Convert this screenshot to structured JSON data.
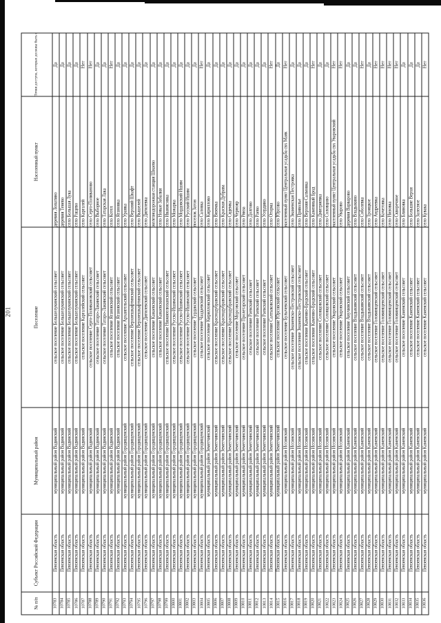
{
  "page": {
    "number": "201"
  },
  "table": {
    "headers": {
      "num": "№ п/п",
      "subject": "Субъект Российской Федерации",
      "district": "Муниципальный район",
      "settlement": "Поселение",
      "locality": "Населенный пункт",
      "access": "Точки доступа, которые должны быть оборудованы средствами связи, используемыми для оказания услуг подвижной радиотелефонной связи"
    },
    "rows": [
      [
        "10783",
        "Пензенская область",
        "муниципальный район Вадинский",
        "сельское поселение Большелукинский сельсовет",
        "деревня Лопатино",
        "Да"
      ],
      [
        "10784",
        "Пензенская область",
        "муниципальный район Вадинский",
        "сельское поселение Большелукинский сельсовет",
        "деревня Тенево",
        "Да"
      ],
      [
        "10785",
        "Пензенская область",
        "муниципальный район Вадинский",
        "сельское поселение Большелукинский сельсовет",
        "село Большая Лука",
        "Да"
      ],
      [
        "10786",
        "Пензенская область",
        "муниципальный район Вадинский",
        "сельское поселение Большелукинский сельсовет",
        "село Ращево",
        "Да"
      ],
      [
        "10787",
        "Пензенская область",
        "муниципальный район Вадинский",
        "сельское поселение Каргалейский сельсовет",
        "село Каргалей",
        "Нет"
      ],
      [
        "10788",
        "Пензенская область",
        "муниципальный район Вадинский",
        "сельское поселение Серго-Поливановский сельсовет",
        "село Серго-Поливаново",
        "Нет"
      ],
      [
        "10789",
        "Пензенская область",
        "муниципальный район Вадинский",
        "сельское поселение Татаро-Лакинский сельсовет",
        "село Выборное",
        "Да"
      ],
      [
        "10790",
        "Пензенская область",
        "муниципальный район Вадинский",
        "сельское поселение Татаро-Лакинский сельсовет",
        "село Татарская Лака",
        "Да"
      ],
      [
        "10791",
        "Пензенская область",
        "муниципальный район Вадинский",
        "сельское поселение Ягановский сельсовет",
        "село Котел",
        "Нет"
      ],
      [
        "10792",
        "Пензенская область",
        "муниципальный район Вадинский",
        "сельское поселение Ягановский сельсовет",
        "село Ягановка",
        "Да"
      ],
      [
        "10793",
        "Пензенская область",
        "муниципальный район Городищенский",
        "сельское поселение Архангельский сельсовет",
        "село Уранка",
        "Да"
      ],
      [
        "10794",
        "Пензенская область",
        "муниципальный район Городищенский",
        "сельское поселение Верхнешкафтинский сельсовет",
        "село Верхний Шкафт",
        "Да"
      ],
      [
        "10795",
        "Пензенская область",
        "муниципальный район Городищенский",
        "сельское поселение Верхнешкафтинский сельсовет",
        "село Вышелей",
        "Да"
      ],
      [
        "10796",
        "Пензенская область",
        "муниципальный район Городищенский",
        "сельское поселение Дигилевский сельсовет",
        "село Дигилевка",
        "Да"
      ],
      [
        "10797",
        "Пензенская область",
        "муниципальный район Городищенский",
        "сельское поселение Канаевский сельсовет",
        "железнодорожная станция Шнаево",
        "Да"
      ],
      [
        "10798",
        "Пензенская область",
        "муниципальный район Городищенский",
        "сельское поселение Канаевский сельсовет",
        "село Новые Забалки",
        "Да"
      ],
      [
        "10799",
        "Пензенская область",
        "муниципальный район Городищенский",
        "сельское поселение Нижнеелюзанский сельсовет",
        "село Иванисовка",
        "Да"
      ],
      [
        "10800",
        "Пензенская область",
        "муниципальный район Городищенский",
        "сельское поселение Русско-Ишимский сельсовет",
        "село Можарка",
        "Да"
      ],
      [
        "10801",
        "Пензенская область",
        "муниципальный район Городищенский",
        "сельское поселение Русско-Ишимский сельсовет",
        "село Мордовский Ишим",
        "Да"
      ],
      [
        "10802",
        "Пензенская область",
        "муниципальный район Городищенский",
        "сельское поселение Русско-Ишимский сельсовет",
        "село Русский Ишим",
        "Да"
      ],
      [
        "10803",
        "Пензенская область",
        "муниципальный район Городищенский",
        "сельское поселение Турдакский сельсовет",
        "поселок Затон",
        "Да"
      ],
      [
        "10804",
        "Пензенская область",
        "муниципальный район Городищенский",
        "сельское поселение Чаадаевский сельсовет",
        "село Саловка",
        "Нет"
      ],
      [
        "10805",
        "Пензенская область",
        "муниципальный район Земетчинский",
        "сельское поселение Кирилловский сельсовет",
        "село Кириллово",
        "Да"
      ],
      [
        "10806",
        "Пензенская область",
        "муниципальный район Земетчинский",
        "сельское поселение Краснодубравский сельсовет",
        "село Вяземка",
        "Да"
      ],
      [
        "10807",
        "Пензенская область",
        "муниципальный район Земетчинский",
        "сельское поселение Краснодубравский сельсовет",
        "село Красная Дубрава",
        "Да"
      ],
      [
        "10808",
        "Пензенская область",
        "муниципальный район Земетчинский",
        "сельское поселение Краснодубравский сельсовет",
        "село Сядемка",
        "Да"
      ],
      [
        "10809",
        "Пензенская область",
        "муниципальный район Земетчинский",
        "сельское поселение Морсовский сельсовет",
        "село Чернояр",
        "Да"
      ],
      [
        "10810",
        "Пензенская область",
        "муниципальный район Земетчинский",
        "сельское поселение Пролетарский сельсовет",
        "село Рянза",
        "Да"
      ],
      [
        "10811",
        "Пензенская область",
        "муниципальный район Земетчинский",
        "сельское поселение Раевский сельсовет",
        "село Долгово",
        "Да"
      ],
      [
        "10812",
        "Пензенская область",
        "муниципальный район Земетчинский",
        "сельское поселение Раевский сельсовет",
        "село Раево",
        "Да"
      ],
      [
        "10813",
        "Пензенская область",
        "муниципальный район Земетчинский",
        "сельское поселение Раевский сельсовет",
        "село Усердино",
        "Да"
      ],
      [
        "10814",
        "Пензенская область",
        "муниципальный район Земетчинский",
        "сельское поселение Салтыковский сельсовет",
        "село Оторма",
        "Нет"
      ],
      [
        "10815",
        "Пензенская область",
        "муниципальный район Земетчинский",
        "сельское поселение Юрсовский сельсовет",
        "село Юрсово",
        "Да"
      ],
      [
        "10816",
        "Пензенская область",
        "муниципальный район Иссинский",
        "сельское поселение Булычевский сельсовет",
        "населенный пункт Центральная усадьба свх Маяк",
        "Нет"
      ],
      [
        "10817",
        "Пензенская область",
        "муниципальный район Иссинский",
        "сельское поселение Знаменско-Пестровский сельсовет",
        "село Знаменская Пестровка",
        "Да"
      ],
      [
        "10818",
        "Пензенская область",
        "муниципальный район Иссинский",
        "сельское поселение Знаменско-Пестровский сельсовет",
        "село Приволье",
        "Да"
      ],
      [
        "10819",
        "Пензенская область",
        "муниципальный район Иссинский",
        "сельское поселение Каменно-Бродский сельсовет",
        "село Верхняя Салмовка",
        "Да"
      ],
      [
        "10820",
        "Пензенская область",
        "муниципальный район Иссинский",
        "сельское поселение Каменно-Бродский сельсовет",
        "село Каменный Брод",
        "Нет"
      ],
      [
        "10821",
        "Пензенская область",
        "муниципальный район Иссинский",
        "сельское поселение Соловцовский сельсовет",
        "село Дмитриевка",
        "Да"
      ],
      [
        "10822",
        "Пензенская область",
        "муниципальный район Иссинский",
        "сельское поселение Соловцовский сельсовет",
        "село Соловцово",
        "Да"
      ],
      [
        "10823",
        "Пензенская область",
        "муниципальный район Иссинский",
        "сельское поселение Уваровский сельсовет",
        "населенный пункт Центральная усадьба свх Уваровский",
        "Нет"
      ],
      [
        "10824",
        "Пензенская область",
        "муниципальный район Иссинский",
        "сельское поселение Уваровский сельсовет",
        "село Уварово",
        "Нет"
      ],
      [
        "10825",
        "Пензенская область",
        "муниципальный район Каменский",
        "сельское поселение Анучинский сельсовет",
        "деревня Варварово",
        "Да"
      ],
      [
        "10826",
        "Пензенская область",
        "муниципальный район Каменский",
        "сельское поселение Владыкинский сельсовет",
        "село Владыкино",
        "Да"
      ],
      [
        "10827",
        "Пензенская область",
        "муниципальный район Каменский",
        "сельское поселение Владыкинский сельсовет",
        "село Соболевка",
        "Нет"
      ],
      [
        "10828",
        "Пензенская область",
        "муниципальный район Каменский",
        "сельское поселение Владыкинский сельсовет",
        "село Троицкое",
        "Да"
      ],
      [
        "10829",
        "Пензенская область",
        "муниципальный район Каменский",
        "сельское поселение Головинщенский сельсовет",
        "село Андреевка",
        "Нет"
      ],
      [
        "10830",
        "Пензенская область",
        "муниципальный район Каменский",
        "сельское поселение Головинщенский сельсовет",
        "село Кочетовка",
        "Нет"
      ],
      [
        "10831",
        "Пензенская область",
        "муниципальный район Каменский",
        "сельское поселение Головинщенский сельсовет",
        "село Низовка",
        "Нет"
      ],
      [
        "10832",
        "Пензенская область",
        "муниципальный район Каменский",
        "сельское поселение Головинщенский сельсовет",
        "село Скворечное",
        "Нет"
      ],
      [
        "10833",
        "Пензенская область",
        "муниципальный район Каменский",
        "сельское поселение Каменский сельсовет",
        "село Блиновка",
        "Да"
      ],
      [
        "10834",
        "Пензенская область",
        "муниципальный район Каменский",
        "сельское поселение Каменский сельсовет",
        "село Большие Верхи",
        "Да"
      ],
      [
        "10835",
        "Пензенская область",
        "муниципальный район Каменский",
        "сельское поселение Каменский сельсовет",
        "село Залесное",
        "Да"
      ],
      [
        "10836",
        "Пензенская область",
        "муниципальный район Каменский",
        "сельское поселение Каменский сельсовет",
        "село Кувака",
        "Нет"
      ]
    ]
  }
}
